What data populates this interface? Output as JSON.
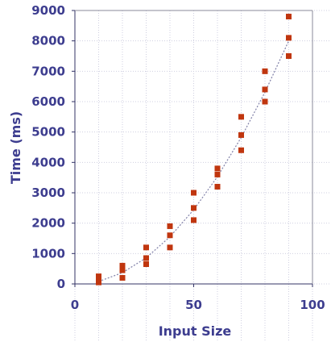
{
  "chart_data": {
    "type": "scatter",
    "title": "",
    "xlabel": "Input Size",
    "ylabel": "Time (ms)",
    "xlim": [
      0,
      100
    ],
    "ylim": [
      0,
      9000
    ],
    "xticks": [
      0,
      50,
      100
    ],
    "yticks": [
      0,
      1000,
      2000,
      3000,
      4000,
      5000,
      6000,
      7000,
      8000,
      9000
    ],
    "grid": true,
    "legend": "none",
    "colors": {
      "axis_text": "#3d3d8f",
      "marker": "#c0360f",
      "trend": "#8080a8",
      "grid": "#cfcfe0"
    },
    "series": [
      {
        "points": [
          [
            10,
            50
          ],
          [
            10,
            150
          ],
          [
            10,
            250
          ],
          [
            20,
            200
          ],
          [
            20,
            450
          ],
          [
            20,
            600
          ],
          [
            30,
            650
          ],
          [
            30,
            850
          ],
          [
            30,
            1200
          ],
          [
            40,
            1200
          ],
          [
            40,
            1600
          ],
          [
            40,
            1900
          ],
          [
            50,
            2100
          ],
          [
            50,
            2500
          ],
          [
            50,
            3000
          ],
          [
            60,
            3200
          ],
          [
            60,
            3600
          ],
          [
            60,
            3800
          ],
          [
            70,
            4400
          ],
          [
            70,
            4900
          ],
          [
            70,
            5500
          ],
          [
            80,
            6000
          ],
          [
            80,
            6400
          ],
          [
            80,
            7000
          ],
          [
            90,
            7500
          ],
          [
            90,
            8100
          ],
          [
            90,
            8800
          ]
        ]
      }
    ],
    "trendline": {
      "type": "polynomial",
      "points": [
        [
          10,
          80
        ],
        [
          20,
          370
        ],
        [
          30,
          860
        ],
        [
          40,
          1550
        ],
        [
          50,
          2440
        ],
        [
          60,
          3530
        ],
        [
          70,
          4820
        ],
        [
          80,
          6310
        ],
        [
          90,
          8000
        ]
      ]
    }
  }
}
